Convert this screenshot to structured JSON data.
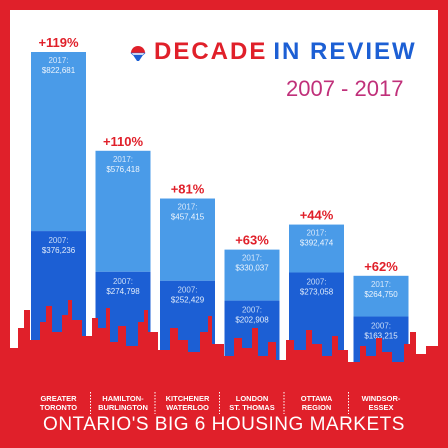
{
  "header": {
    "title_part1": "DECADE",
    "title_part2": "IN REVIEW",
    "years": "2007 - 2017",
    "logo_icon": "remax-balloon-icon"
  },
  "footer": {
    "title": "ONTARIO'S BIG 6 HOUSING MARKETS"
  },
  "colors": {
    "border_red": "#e0202a",
    "bar_2017": "#4a9be8",
    "bar_2007": "#1c5fd4",
    "skyline": "#e0202a",
    "pct_red": "#e0202a",
    "years_magenta": "#c0307a"
  },
  "chart_data": {
    "type": "bar",
    "title": "DECADE IN REVIEW 2007 - 2017",
    "subtitle": "ONTARIO'S BIG 6 HOUSING MARKETS",
    "categories": [
      "GREATER TORONTO",
      "HAMILTON-BURLINGTON",
      "KITCHENER WATERLOO",
      "LONDON ST. THOMAS",
      "OTTAWA REGION",
      "WINDSOR-ESSEX"
    ],
    "category_lines": [
      [
        "GREATER",
        "TORONTO"
      ],
      [
        "HAMILTON-",
        "BURLINGTON"
      ],
      [
        "KITCHENER",
        "WATERLOO"
      ],
      [
        "LONDON",
        "ST. THOMAS"
      ],
      [
        "OTTAWA",
        "REGION"
      ],
      [
        "WINDSOR-",
        "ESSEX"
      ]
    ],
    "series": [
      {
        "name": "2007",
        "values": [
          376236,
          274798,
          252429,
          202908,
          273058,
          163215
        ],
        "labels": [
          "$376,236",
          "$274,798",
          "$252,429",
          "$202,908",
          "$273,058",
          "$163,215"
        ]
      },
      {
        "name": "2017",
        "values": [
          822681,
          576418,
          457415,
          330037,
          392474,
          264750
        ],
        "labels": [
          "$822,681",
          "$576,418",
          "$457,415",
          "$330,037",
          "$392,474",
          "$264,750"
        ]
      }
    ],
    "percent_change": [
      "+119%",
      "+110%",
      "+81%",
      "+63%",
      "+44%",
      "+62%"
    ],
    "label_prefix": "2007:",
    "label_prefix_2017": "2017:",
    "ylim": [
      0,
      822681
    ],
    "xlabel": "",
    "ylabel": ""
  }
}
